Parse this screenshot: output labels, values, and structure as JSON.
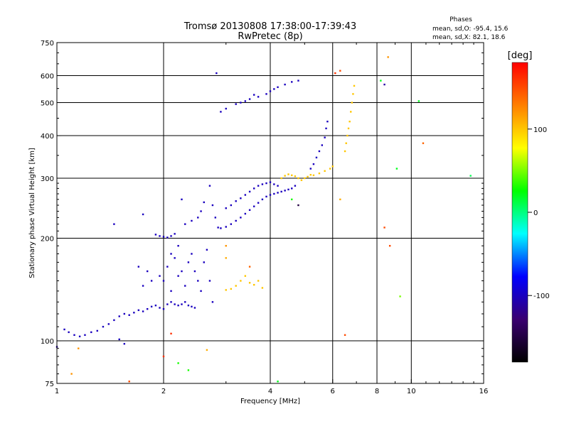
{
  "chart_data": {
    "type": "scatter",
    "title": "Tromsø 20130808 17:38:00-17:39:43",
    "subtitle": "RwPretec (8p)",
    "xlabel": "Frequency [MHz]",
    "ylabel": "Stationary phase Virtual Height [km]",
    "x_scale": "log",
    "y_scale": "log",
    "xlim": [
      1,
      16
    ],
    "ylim": [
      75,
      750
    ],
    "x_ticks": [
      1,
      2,
      4,
      6,
      8,
      10,
      16
    ],
    "x_tick_labels": [
      "1",
      "2",
      "4",
      "6",
      "8",
      "10",
      "16"
    ],
    "y_ticks": [
      75,
      100,
      200,
      300,
      400,
      500,
      600,
      750
    ],
    "y_tick_labels": [
      "75",
      "100",
      "200",
      "300",
      "400",
      "500",
      "600",
      "750"
    ],
    "grid": true,
    "phase_info": {
      "header": "Phases",
      "line_o": "mean, sd,O: -95.4, 15.6",
      "line_x": "mean, sd,X:  82.1, 18.6"
    },
    "colorbar": {
      "label": "[deg]",
      "range": [
        -180,
        180
      ],
      "ticks": [
        100,
        0,
        -100
      ],
      "tick_labels": [
        "100",
        "0",
        "-100"
      ],
      "colors": [
        "#000000",
        "#3a0070",
        "#0000ff",
        "#00ffff",
        "#00ff00",
        "#ffff00",
        "#ff7f00",
        "#ff0000"
      ]
    },
    "series": [
      {
        "name": "O-mode",
        "phase": -100,
        "points": [
          [
            1.05,
            108
          ],
          [
            1.08,
            106
          ],
          [
            1.12,
            104
          ],
          [
            1.16,
            103
          ],
          [
            1.2,
            104
          ],
          [
            1.25,
            106
          ],
          [
            1.3,
            107
          ],
          [
            1.35,
            110
          ],
          [
            1.4,
            112
          ],
          [
            1.45,
            115
          ],
          [
            1.5,
            118
          ],
          [
            1.55,
            120
          ],
          [
            1.6,
            119
          ],
          [
            1.65,
            121
          ],
          [
            1.7,
            123
          ],
          [
            1.75,
            122
          ],
          [
            1.8,
            124
          ],
          [
            1.85,
            126
          ],
          [
            1.9,
            127
          ],
          [
            1.95,
            125
          ],
          [
            2.0,
            124
          ],
          [
            2.05,
            128
          ],
          [
            2.1,
            130
          ],
          [
            2.15,
            128
          ],
          [
            2.2,
            127
          ],
          [
            2.25,
            128
          ],
          [
            2.3,
            130
          ],
          [
            2.35,
            127
          ],
          [
            2.4,
            126
          ],
          [
            2.45,
            125
          ],
          [
            2.0,
            150
          ],
          [
            2.05,
            165
          ],
          [
            2.1,
            140
          ],
          [
            2.15,
            175
          ],
          [
            2.2,
            155
          ],
          [
            2.25,
            160
          ],
          [
            2.3,
            145
          ],
          [
            2.35,
            170
          ],
          [
            2.4,
            180
          ],
          [
            2.45,
            160
          ],
          [
            2.5,
            150
          ],
          [
            2.55,
            140
          ],
          [
            2.6,
            170
          ],
          [
            2.65,
            185
          ],
          [
            2.7,
            150
          ],
          [
            2.75,
            130
          ],
          [
            1.8,
            160
          ],
          [
            1.85,
            150
          ],
          [
            1.75,
            145
          ],
          [
            1.7,
            165
          ],
          [
            1.95,
            155
          ],
          [
            2.1,
            180
          ],
          [
            2.2,
            190
          ],
          [
            1.9,
            205
          ],
          [
            1.95,
            203
          ],
          [
            2.0,
            202
          ],
          [
            2.05,
            201
          ],
          [
            2.1,
            203
          ],
          [
            2.15,
            206
          ],
          [
            2.3,
            220
          ],
          [
            2.4,
            225
          ],
          [
            2.5,
            230
          ],
          [
            2.55,
            240
          ],
          [
            2.6,
            255
          ],
          [
            2.7,
            285
          ],
          [
            2.75,
            250
          ],
          [
            2.8,
            230
          ],
          [
            2.85,
            215
          ],
          [
            2.9,
            214
          ],
          [
            3.0,
            216
          ],
          [
            3.1,
            220
          ],
          [
            3.2,
            225
          ],
          [
            3.3,
            230
          ],
          [
            3.4,
            236
          ],
          [
            3.5,
            242
          ],
          [
            3.6,
            248
          ],
          [
            3.7,
            254
          ],
          [
            3.8,
            260
          ],
          [
            3.9,
            265
          ],
          [
            4.0,
            268
          ],
          [
            4.1,
            270
          ],
          [
            4.2,
            272
          ],
          [
            4.3,
            274
          ],
          [
            4.4,
            276
          ],
          [
            4.5,
            278
          ],
          [
            4.6,
            280
          ],
          [
            4.7,
            285
          ],
          [
            3.0,
            245
          ],
          [
            3.1,
            250
          ],
          [
            3.2,
            257
          ],
          [
            3.3,
            262
          ],
          [
            3.4,
            268
          ],
          [
            3.5,
            274
          ],
          [
            3.6,
            280
          ],
          [
            3.7,
            285
          ],
          [
            3.8,
            288
          ],
          [
            3.9,
            290
          ],
          [
            4.0,
            292
          ],
          [
            4.1,
            288
          ],
          [
            4.2,
            285
          ],
          [
            5.2,
            320
          ],
          [
            5.3,
            330
          ],
          [
            5.4,
            345
          ],
          [
            5.5,
            360
          ],
          [
            5.6,
            375
          ],
          [
            5.7,
            395
          ],
          [
            5.75,
            420
          ],
          [
            5.8,
            440
          ],
          [
            2.9,
            470
          ],
          [
            3.0,
            480
          ],
          [
            3.2,
            495
          ],
          [
            3.4,
            505
          ],
          [
            3.5,
            512
          ],
          [
            3.7,
            520
          ],
          [
            3.9,
            530
          ],
          [
            4.0,
            540
          ],
          [
            4.1,
            548
          ],
          [
            4.2,
            555
          ],
          [
            4.4,
            565
          ],
          [
            4.6,
            575
          ],
          [
            4.8,
            580
          ],
          [
            3.6,
            527
          ],
          [
            3.3,
            500
          ],
          [
            1.45,
            220
          ],
          [
            1.75,
            235
          ],
          [
            2.25,
            260
          ],
          [
            1.5,
            101
          ],
          [
            1.55,
            98
          ]
        ]
      },
      {
        "name": "X-mode",
        "phase": 100,
        "points": [
          [
            4.3,
            300
          ],
          [
            4.4,
            305
          ],
          [
            4.5,
            308
          ],
          [
            4.6,
            306
          ],
          [
            4.7,
            304
          ],
          [
            4.8,
            300
          ],
          [
            4.9,
            296
          ],
          [
            5.0,
            300
          ],
          [
            5.1,
            303
          ],
          [
            5.2,
            307
          ],
          [
            5.3,
            306
          ],
          [
            5.5,
            310
          ],
          [
            5.7,
            315
          ],
          [
            5.9,
            320
          ],
          [
            6.0,
            325
          ],
          [
            6.5,
            360
          ],
          [
            6.55,
            380
          ],
          [
            6.6,
            400
          ],
          [
            6.65,
            420
          ],
          [
            6.7,
            440
          ],
          [
            6.75,
            470
          ],
          [
            6.8,
            500
          ],
          [
            6.85,
            530
          ],
          [
            6.9,
            560
          ],
          [
            3.2,
            145
          ],
          [
            3.3,
            150
          ],
          [
            3.4,
            155
          ],
          [
            3.5,
            148
          ],
          [
            3.6,
            146
          ],
          [
            3.1,
            142
          ],
          [
            3.0,
            141
          ],
          [
            3.7,
            150
          ],
          [
            3.8,
            143
          ]
        ]
      }
    ],
    "scattered_points": [
      [
        2.82,
        610,
        -100
      ],
      [
        6.1,
        610,
        160
      ],
      [
        6.3,
        620,
        150
      ],
      [
        8.2,
        580,
        20
      ],
      [
        8.4,
        565,
        -110
      ],
      [
        8.6,
        680,
        120
      ],
      [
        10.5,
        505,
        20
      ],
      [
        10.8,
        380,
        140
      ],
      [
        9.1,
        320,
        20
      ],
      [
        14.7,
        305,
        10
      ],
      [
        6.3,
        260,
        110
      ],
      [
        8.4,
        215,
        150
      ],
      [
        8.7,
        190,
        150
      ],
      [
        9.3,
        135,
        50
      ],
      [
        6.5,
        104,
        150
      ],
      [
        4.8,
        250,
        -150
      ],
      [
        4.6,
        260,
        30
      ],
      [
        3.0,
        175,
        110
      ],
      [
        3.5,
        165,
        140
      ],
      [
        3.0,
        190,
        120
      ],
      [
        2.1,
        105,
        160
      ],
      [
        2.0,
        90,
        160
      ],
      [
        2.2,
        86,
        30
      ],
      [
        2.35,
        82,
        30
      ],
      [
        2.65,
        94,
        110
      ],
      [
        1.15,
        95,
        120
      ],
      [
        1.1,
        80,
        120
      ],
      [
        1.6,
        76,
        150
      ],
      [
        1.0,
        96,
        -110
      ],
      [
        4.2,
        76,
        20
      ]
    ]
  }
}
